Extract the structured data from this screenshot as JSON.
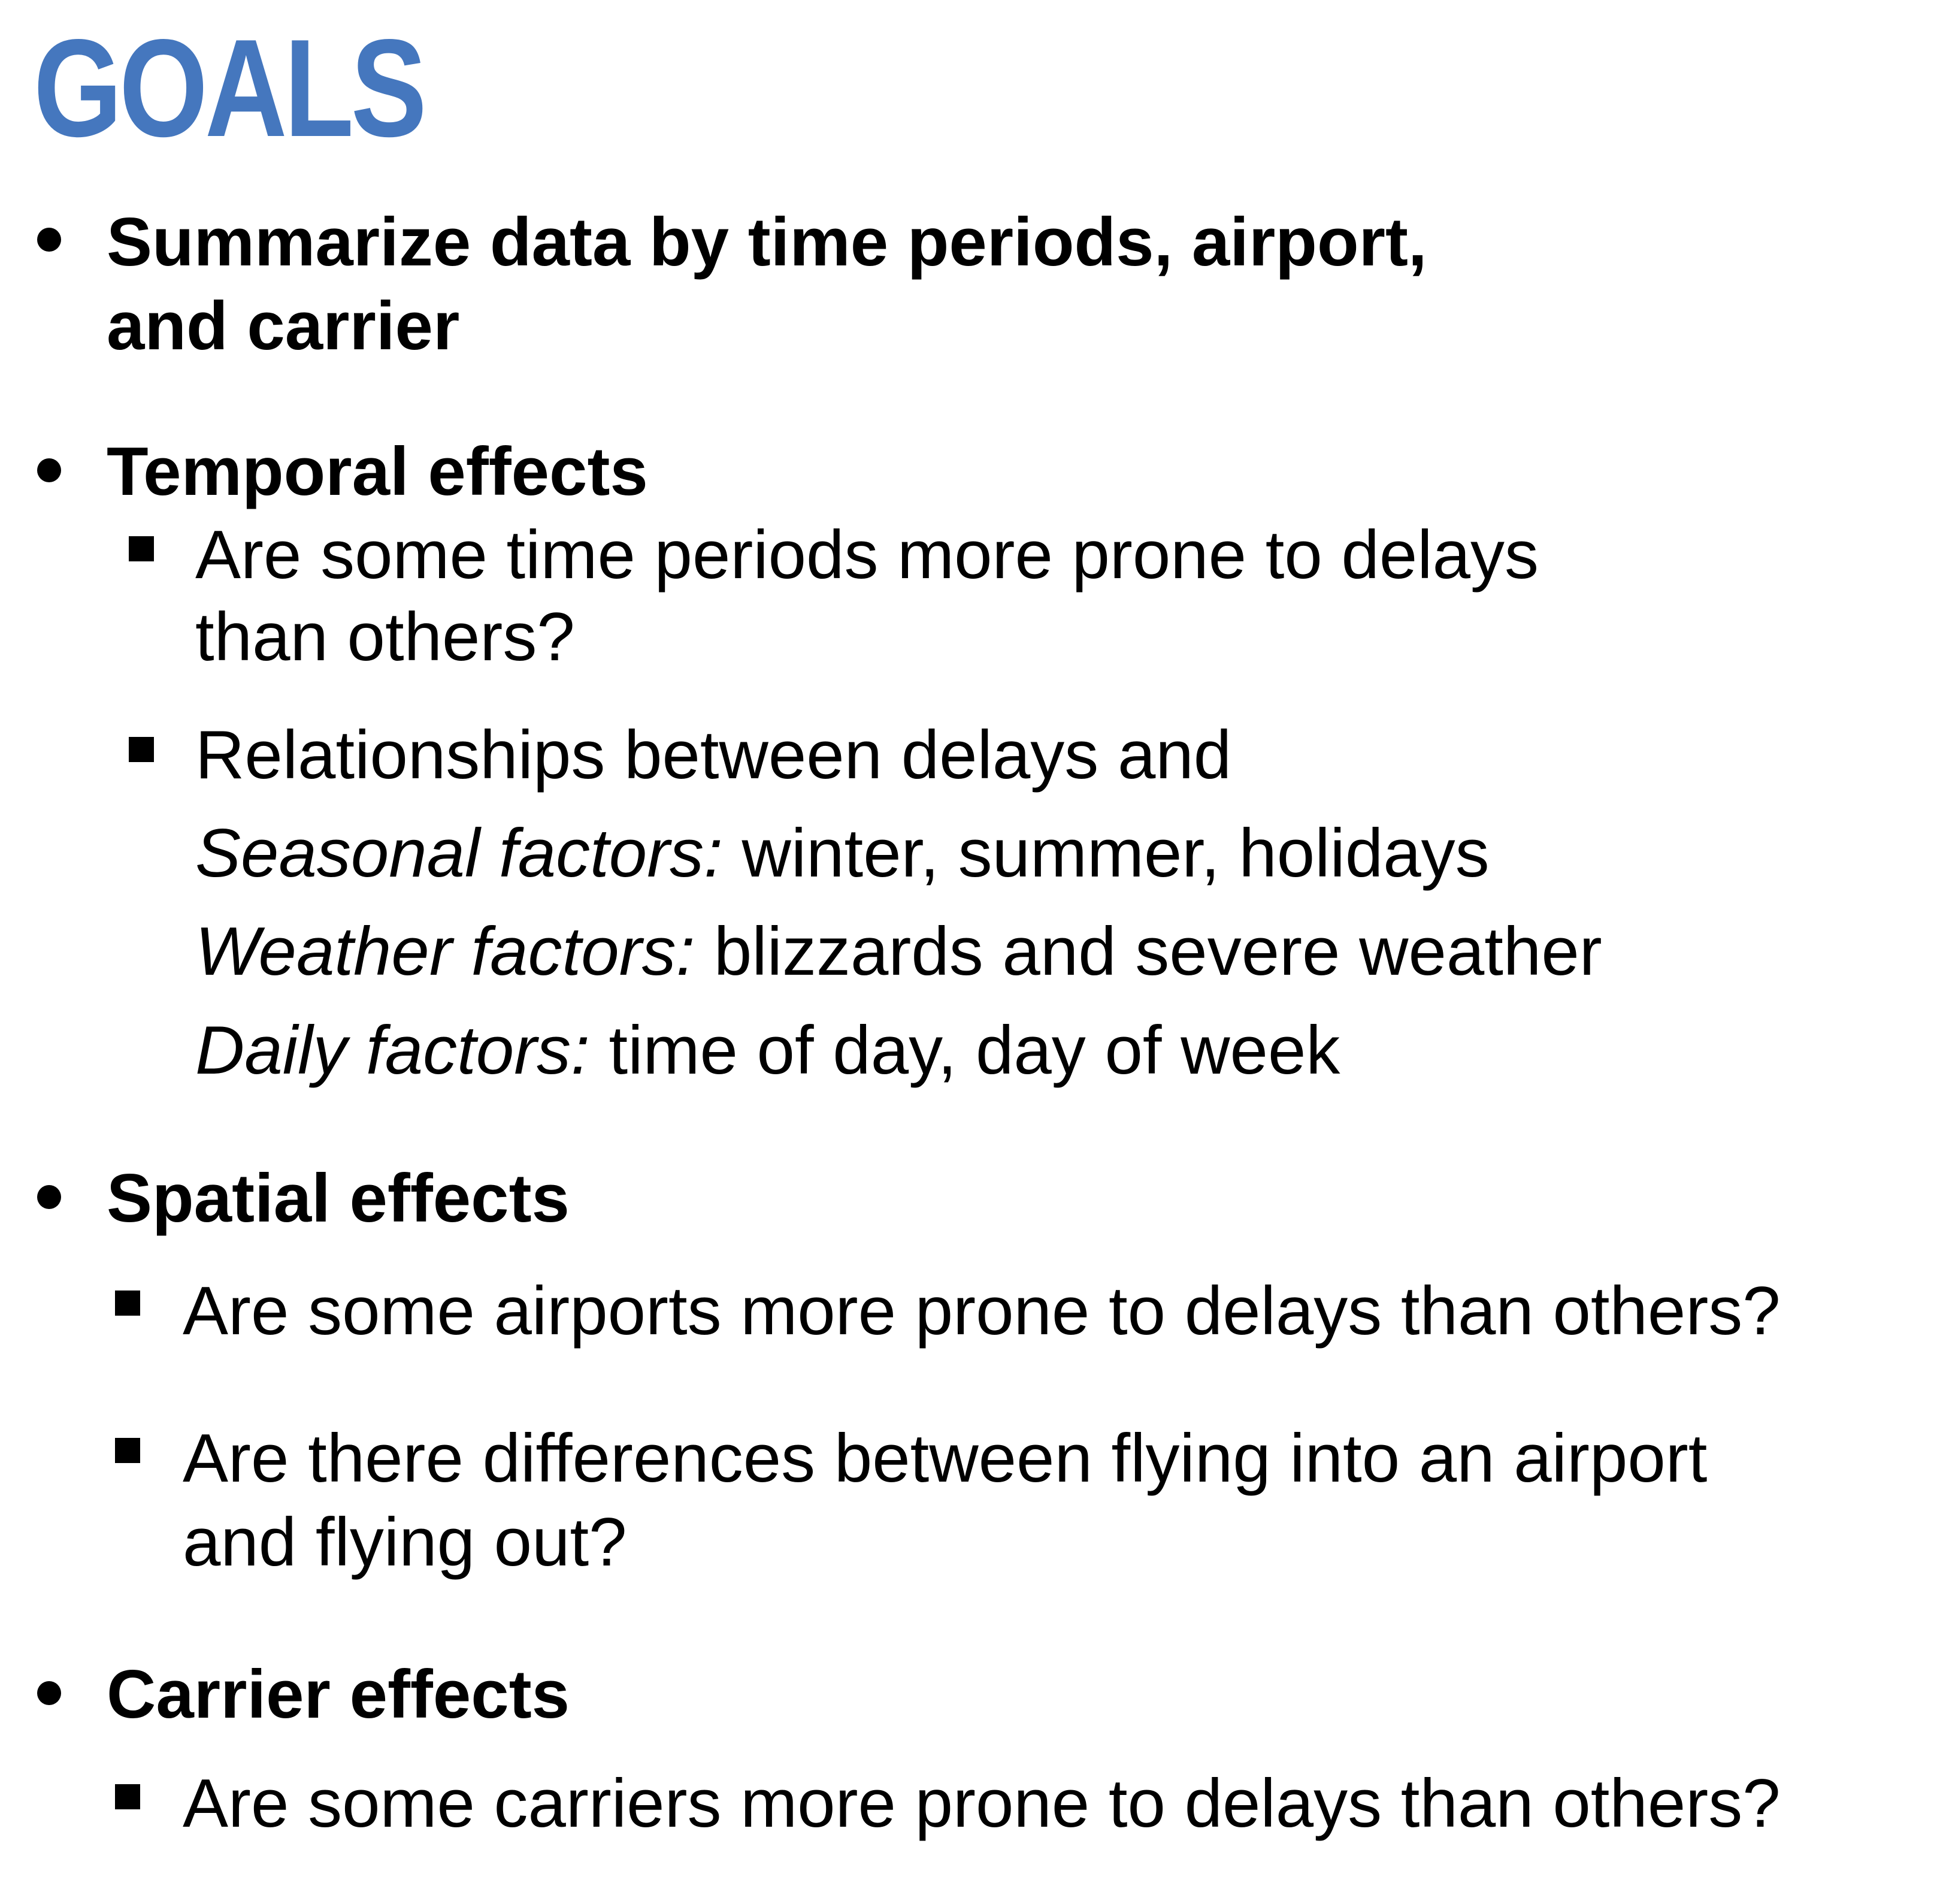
{
  "slide": {
    "title": "GOALS",
    "accent_color": "#4577BE",
    "sections": [
      {
        "heading_lines": [
          "Summarize data by time periods, airport,",
          "and carrier"
        ],
        "items": []
      },
      {
        "heading_lines": [
          "Temporal effects"
        ],
        "items": [
          {
            "lines": [
              "Are some time periods more prone to delays",
              "than others?"
            ]
          },
          {
            "lines": [
              "Relationships between delays and"
            ],
            "factors": [
              {
                "label": "Seasonal factors:",
                "text": " winter, summer, holidays"
              },
              {
                "label": "Weather factors:",
                "text": " blizzards and severe weather"
              },
              {
                "label": "Daily factors:",
                "text": " time of day, day of week"
              }
            ]
          }
        ]
      },
      {
        "heading_lines": [
          "Spatial effects"
        ],
        "items": [
          {
            "lines": [
              "Are some airports more prone to delays than others?"
            ]
          },
          {
            "lines": [
              "Are there differences between flying into an airport",
              "and flying out?"
            ]
          }
        ]
      },
      {
        "heading_lines": [
          "Carrier effects"
        ],
        "items": [
          {
            "lines": [
              "Are some carriers more prone to delays than others?"
            ]
          }
        ]
      }
    ]
  }
}
